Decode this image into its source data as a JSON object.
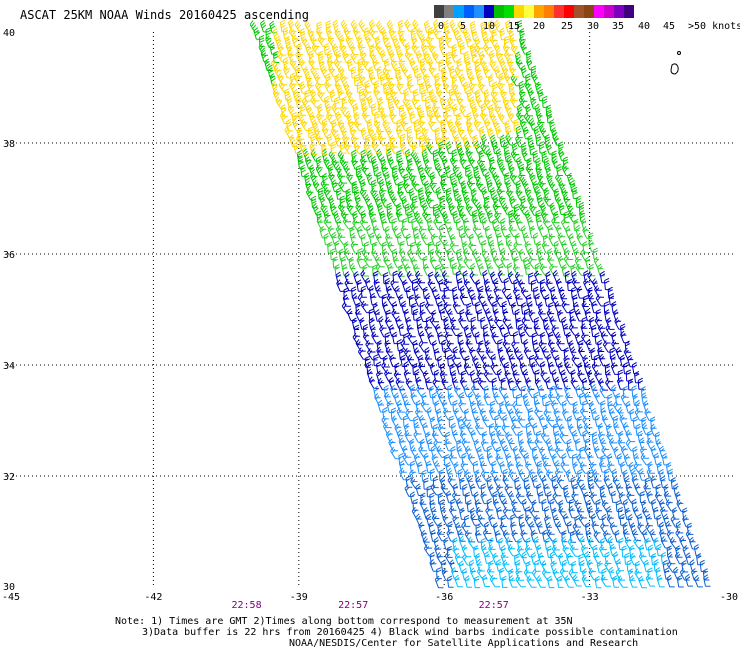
{
  "title": "ASCAT 25KM NOAA Winds 20160425 ascending",
  "legend": {
    "colors": [
      "#404040",
      "#808080",
      "#00a0ff",
      "#0060ff",
      "#1e90ff",
      "#0000c0",
      "#00c000",
      "#00e000",
      "#ffd700",
      "#ffff40",
      "#ffa500",
      "#ff7f00",
      "#ff3030",
      "#ff0000",
      "#a0522d",
      "#8b4513",
      "#ff00ff",
      "#cc00cc",
      "#8000c0",
      "#400080"
    ],
    "labels": [
      "0",
      "5",
      "10",
      "15",
      "20",
      "25",
      "30",
      "35",
      "40",
      "45",
      ">50 knots"
    ],
    "label_x": [
      438,
      460,
      483,
      508,
      533,
      561,
      587,
      612,
      638,
      663,
      688
    ]
  },
  "axes": {
    "lon_ticks": [
      "-45",
      "-42",
      "-39",
      "-36",
      "-33",
      "-30"
    ],
    "lon_values": [
      -45,
      -42,
      -39,
      -36,
      -33,
      -30
    ],
    "lat_ticks": [
      "30",
      "32",
      "34",
      "36",
      "38",
      "40"
    ],
    "lat_values": [
      30,
      32,
      34,
      36,
      38,
      40
    ]
  },
  "times": [
    {
      "label": "22:58",
      "lon": -40.1
    },
    {
      "label": "22:57",
      "lon": -37.9
    },
    {
      "label": "22:57",
      "lon": -35.0
    }
  ],
  "notes": {
    "line1": "Note: 1) Times are GMT 2)Times along bottom correspond to measurement at 35N",
    "line2": "3)Data buffer is 22 hrs from 20160425 4) Black wind barbs indicate possible contamination",
    "line3": "NOAA/NESDIS/Center for Satellite Applications and Research"
  },
  "swath": {
    "top_lon": [
      -40.0,
      -34.4
    ],
    "bottom_lon": [
      -36.2,
      -30.5
    ],
    "top_lat": 40,
    "bottom_lat": 30
  },
  "wind_zones": [
    {
      "lat_min": 37.7,
      "lat_max": 40,
      "lon_min": -39.5,
      "lon_max": -34.5,
      "color": "#ffd700"
    },
    {
      "lat_min": 36.5,
      "lat_max": 40,
      "color": "#00c800"
    },
    {
      "lat_min": 35.5,
      "lat_max": 36.5,
      "color": "#2ed02e"
    },
    {
      "lat_min": 33.5,
      "lat_max": 35.5,
      "color": "#0000c0"
    },
    {
      "lat_min": 31.8,
      "lat_max": 33.5,
      "color": "#1e90ff"
    },
    {
      "lat_min": 30,
      "lat_max": 31.8,
      "color": "#1060d0"
    },
    {
      "lat_min": 30,
      "lat_max": 30.8,
      "color": "#00bfff"
    }
  ]
}
